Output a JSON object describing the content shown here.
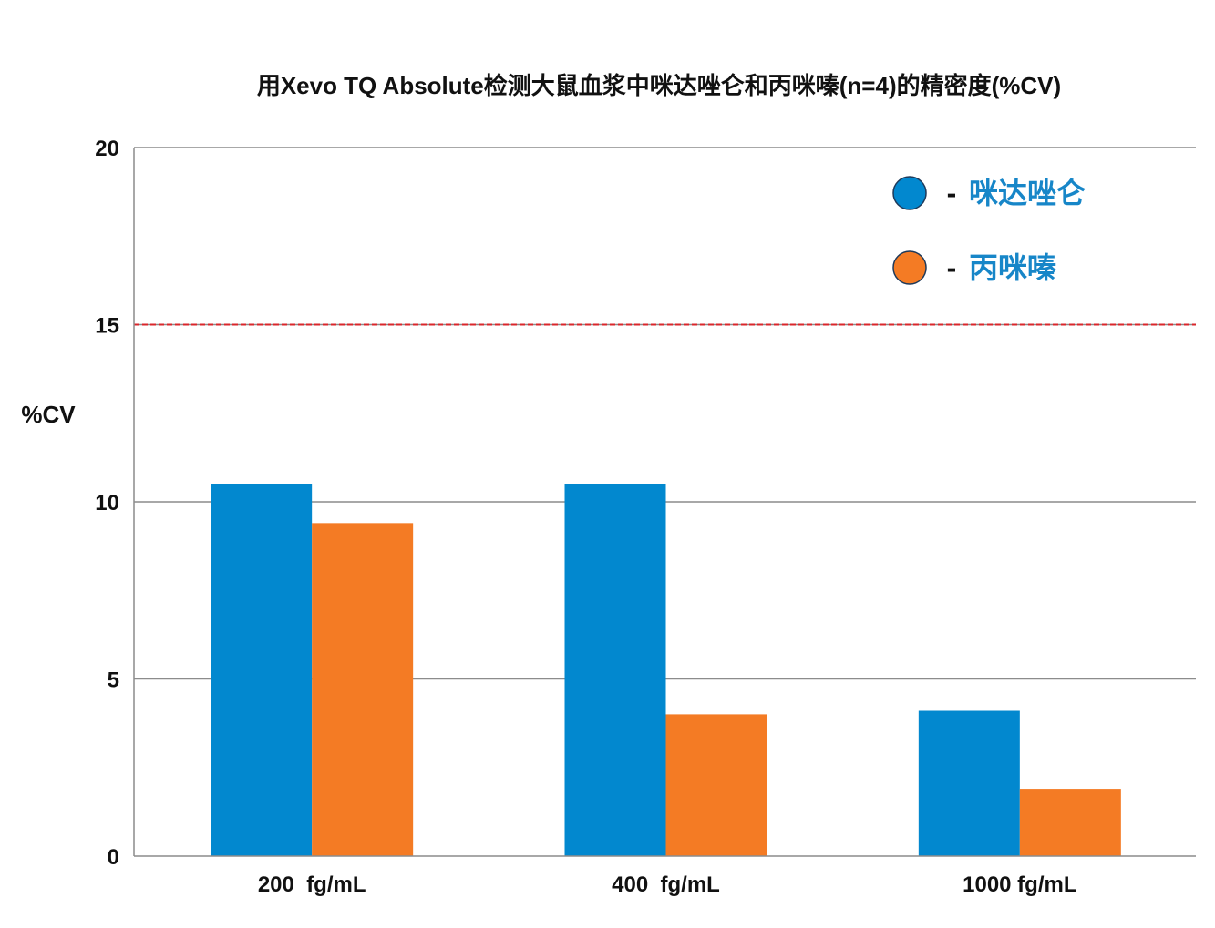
{
  "chart_data": {
    "type": "bar",
    "title": "用Xevo TQ Absolute检测大鼠血浆中咪达唑仑和丙咪嗪(n=4)的精密度(%CV)",
    "xlabel": "",
    "ylabel": "%CV",
    "ylim": [
      0,
      20
    ],
    "yticks": [
      0,
      5,
      10,
      15,
      20
    ],
    "categories": [
      "200  fg/mL",
      "400  fg/mL",
      "1000 fg/mL"
    ],
    "series": [
      {
        "name": "咪达唑仑",
        "color": "#0288cf",
        "values": [
          10.5,
          10.5,
          4.1
        ]
      },
      {
        "name": "丙咪嗪",
        "color": "#f47b24",
        "values": [
          9.4,
          4.0,
          1.9
        ]
      }
    ],
    "reference_line": {
      "value": 15,
      "color": "#d9262b",
      "style": "dashed"
    },
    "legend": {
      "position": "top-right",
      "separator": "-",
      "text_color": "#1786c8"
    },
    "grid": true
  }
}
